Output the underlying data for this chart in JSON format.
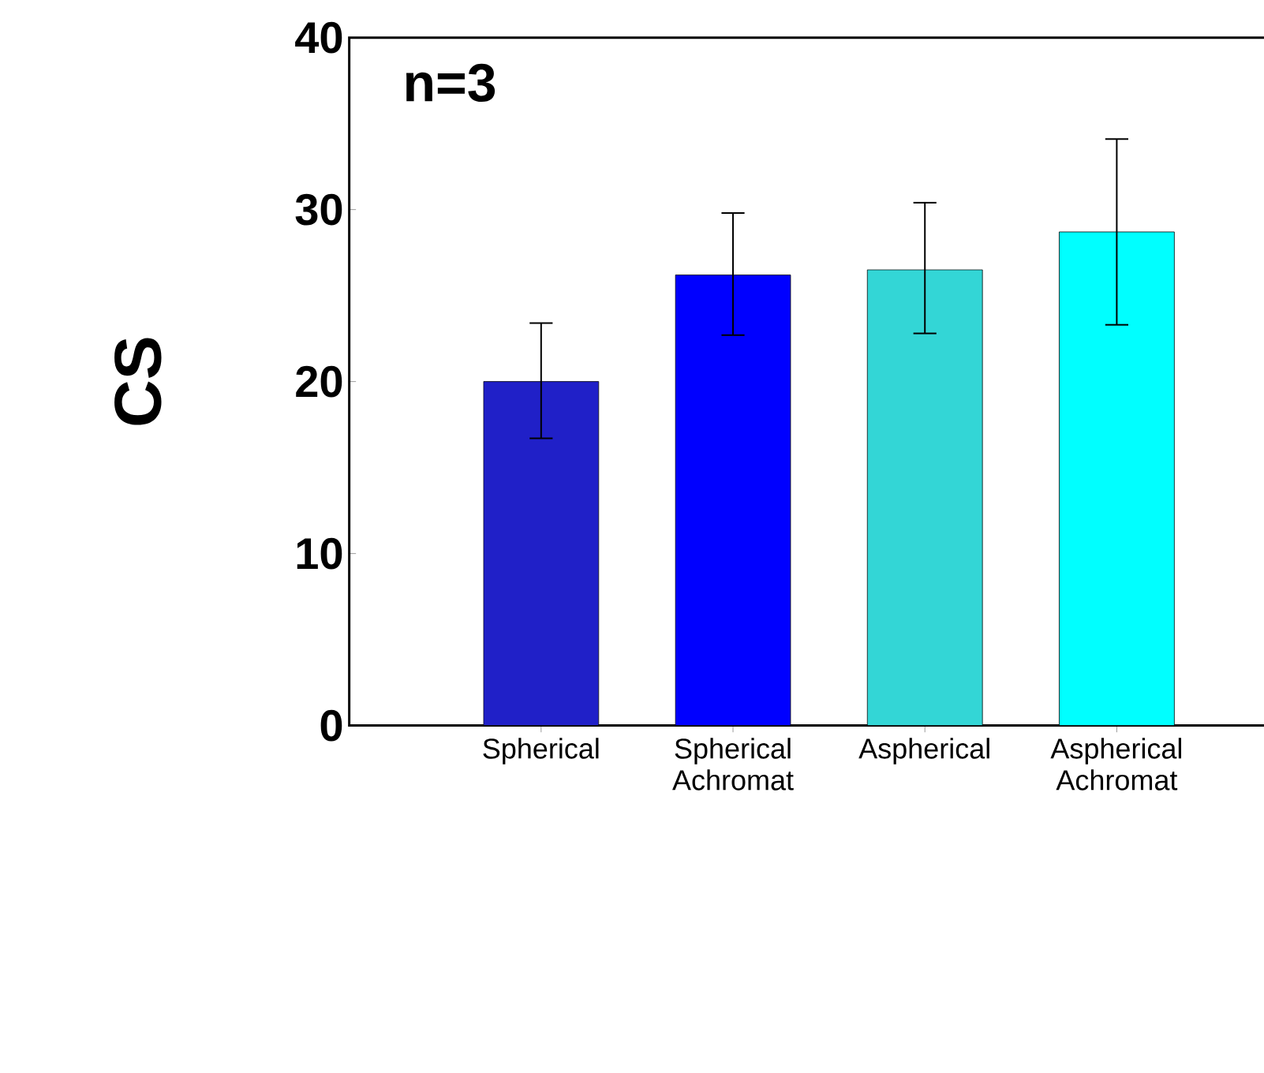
{
  "chart_data": {
    "type": "bar",
    "ylabel": "CS",
    "annotations": [
      "n=3"
    ],
    "categories": [
      "Spherical",
      "Spherical Achromat",
      "Aspherical",
      "Aspherical Achromat"
    ],
    "values": [
      20.0,
      26.2,
      26.5,
      28.7
    ],
    "colors": [
      "#2020c8",
      "#0000ff",
      "#33d6d6",
      "#00ffff"
    ],
    "errors": [
      [
        16.7,
        23.4
      ],
      [
        22.7,
        29.8
      ],
      [
        22.8,
        30.4
      ],
      [
        23.3,
        34.1
      ]
    ],
    "ylim": [
      0,
      40
    ],
    "yticks": [
      0,
      10,
      20,
      30,
      40
    ]
  }
}
